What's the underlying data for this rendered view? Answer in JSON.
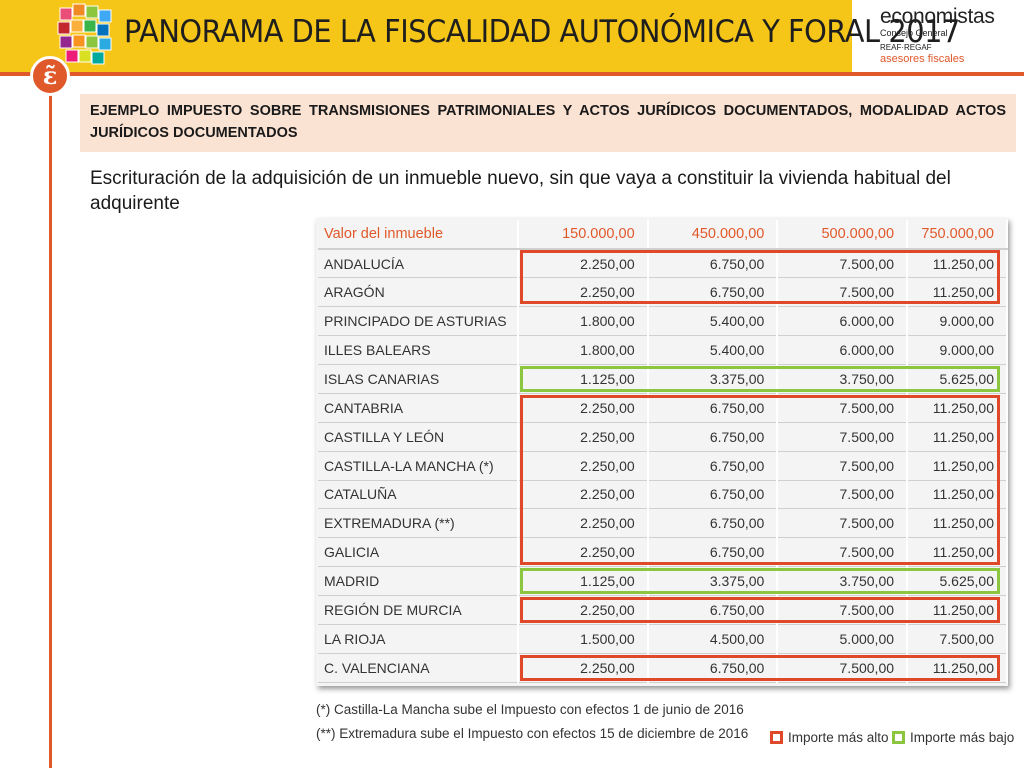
{
  "header": {
    "title": "PANORAMA DE LA FISCALIDAD AUTONÓMICA Y FORAL 2017",
    "brand_name": "economistas",
    "brand_sub": "Consejo General",
    "brand_org": "REAF·REGAF",
    "brand_tagline": "asesores fiscales",
    "badge_glyph": "ɛ̃"
  },
  "colors": {
    "accent": "#e0592a",
    "banner": "#f5c518",
    "heading_bg": "#fbe3d4",
    "high": "#e0482a",
    "low": "#8cc63f"
  },
  "heading": "EJEMPLO IMPUESTO SOBRE TRANSMISIONES PATRIMONIALES Y ACTOS JURÍDICOS DOCUMENTADOS, MODALIDAD ACTOS JURÍDICOS DOCUMENTADOS",
  "description": "Escrituración de la adquisición de un inmueble nuevo, sin que vaya a constituir la vivienda habitual del adquirente",
  "table": {
    "header": [
      "Valor del inmueble",
      "150.000,00",
      "450.000,00",
      "500.000,00",
      "750.000,00"
    ],
    "rows": [
      {
        "name": "ANDALUCÍA",
        "values": [
          "2.250,00",
          "6.750,00",
          "7.500,00",
          "11.250,00"
        ]
      },
      {
        "name": "ARAGÓN",
        "values": [
          "2.250,00",
          "6.750,00",
          "7.500,00",
          "11.250,00"
        ]
      },
      {
        "name": "PRINCIPADO DE ASTURIAS",
        "values": [
          "1.800,00",
          "5.400,00",
          "6.000,00",
          "9.000,00"
        ]
      },
      {
        "name": "ILLES BALEARS",
        "values": [
          "1.800,00",
          "5.400,00",
          "6.000,00",
          "9.000,00"
        ]
      },
      {
        "name": "ISLAS CANARIAS",
        "values": [
          "1.125,00",
          "3.375,00",
          "3.750,00",
          "5.625,00"
        ]
      },
      {
        "name": "CANTABRIA",
        "values": [
          "2.250,00",
          "6.750,00",
          "7.500,00",
          "11.250,00"
        ]
      },
      {
        "name": "CASTILLA Y LEÓN",
        "values": [
          "2.250,00",
          "6.750,00",
          "7.500,00",
          "11.250,00"
        ]
      },
      {
        "name": "CASTILLA-LA MANCHA (*)",
        "values": [
          "2.250,00",
          "6.750,00",
          "7.500,00",
          "11.250,00"
        ]
      },
      {
        "name": "CATALUÑA",
        "values": [
          "2.250,00",
          "6.750,00",
          "7.500,00",
          "11.250,00"
        ]
      },
      {
        "name": "EXTREMADURA (**)",
        "values": [
          "2.250,00",
          "6.750,00",
          "7.500,00",
          "11.250,00"
        ]
      },
      {
        "name": "GALICIA",
        "values": [
          "2.250,00",
          "6.750,00",
          "7.500,00",
          "11.250,00"
        ]
      },
      {
        "name": "MADRID",
        "values": [
          "1.125,00",
          "3.375,00",
          "3.750,00",
          "5.625,00"
        ]
      },
      {
        "name": "REGIÓN DE MURCIA",
        "values": [
          "2.250,00",
          "6.750,00",
          "7.500,00",
          "11.250,00"
        ]
      },
      {
        "name": "LA RIOJA",
        "values": [
          "1.500,00",
          "4.500,00",
          "5.000,00",
          "7.500,00"
        ]
      },
      {
        "name": "C. VALENCIANA",
        "values": [
          "2.250,00",
          "6.750,00",
          "7.500,00",
          "11.250,00"
        ]
      }
    ]
  },
  "footnotes": [
    "(*) Castilla-La Mancha sube el Impuesto con efectos 1 de junio de 2016",
    "(**) Extremadura sube el Impuesto con efectos 15 de diciembre de 2016"
  ],
  "legend": {
    "high": "Importe más alto",
    "low": "Importe más bajo"
  }
}
